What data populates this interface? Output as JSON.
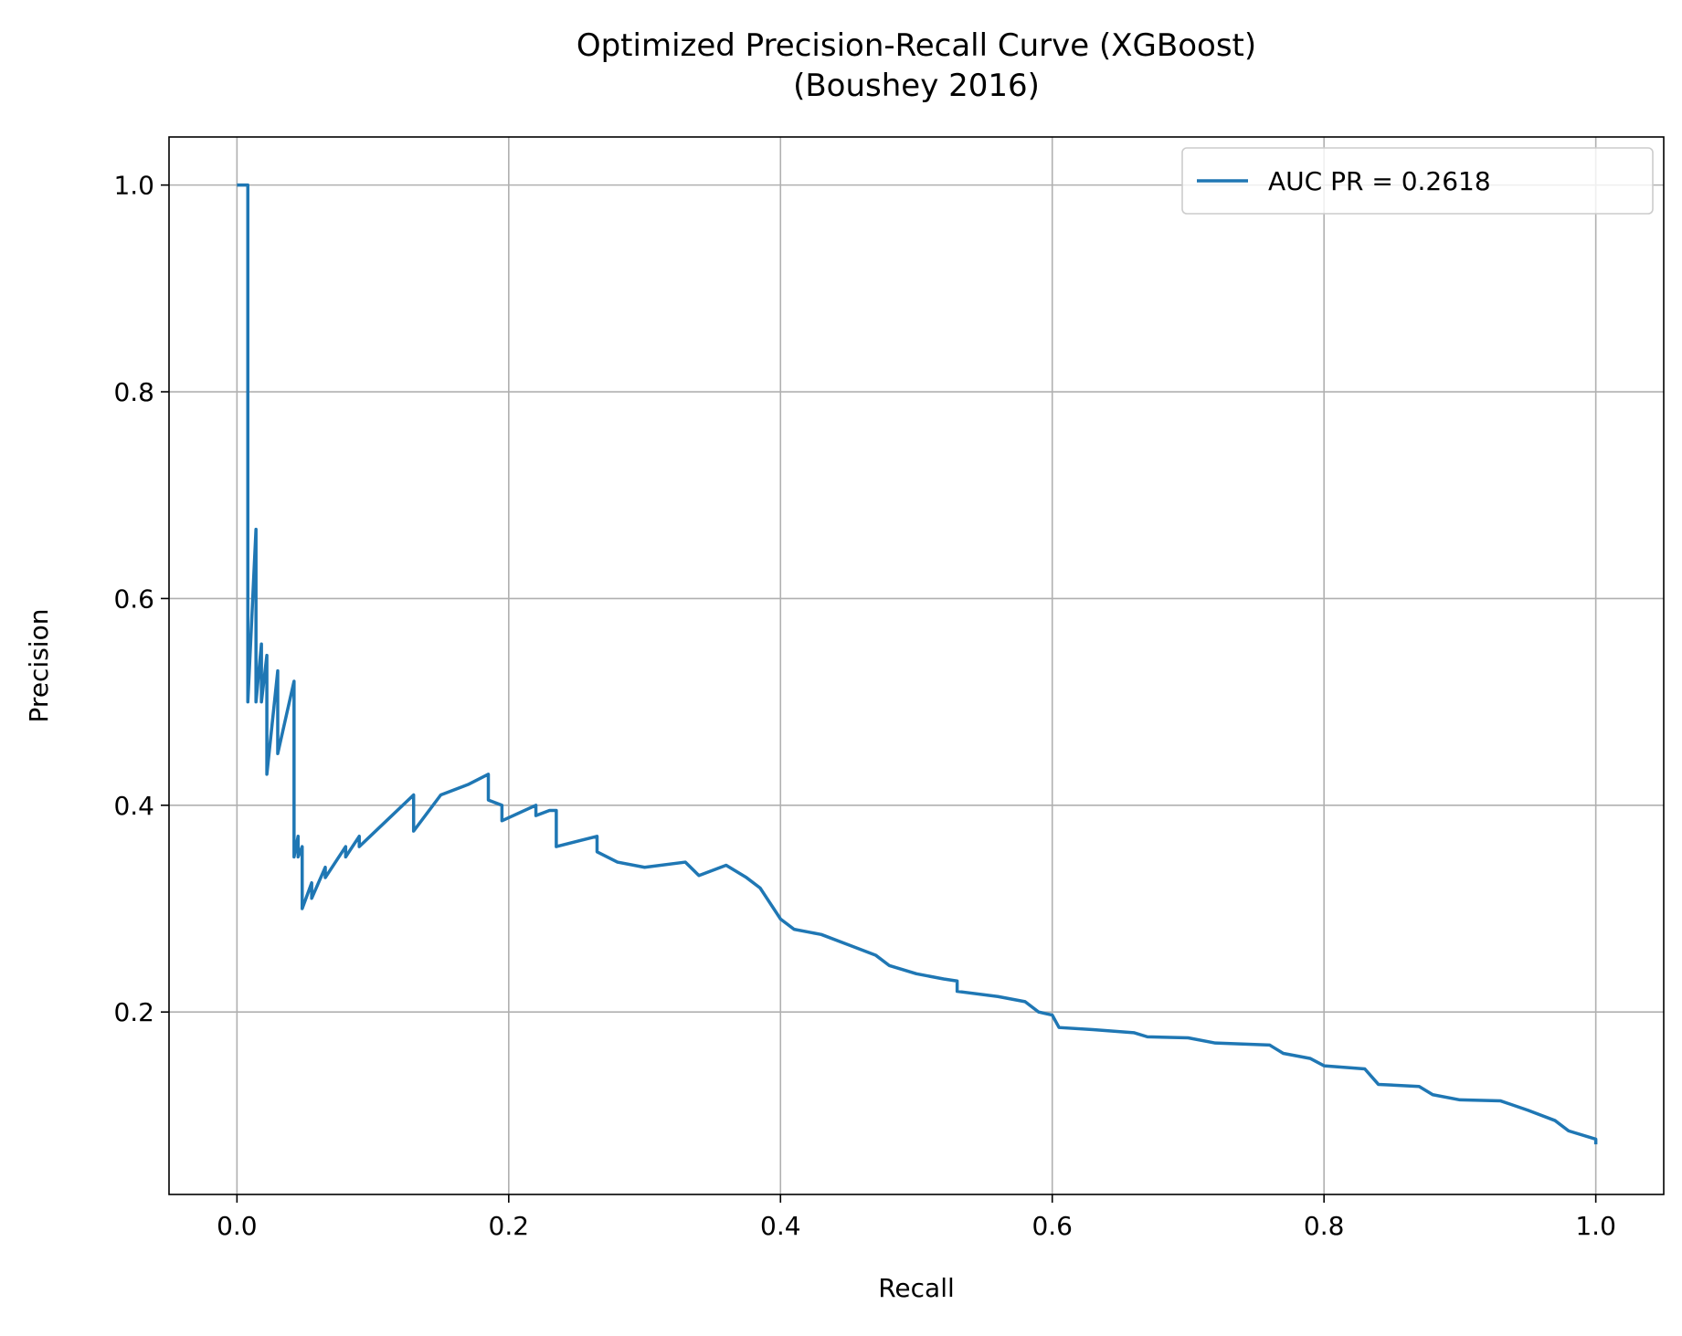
{
  "chart_data": {
    "type": "line",
    "title": "Optimized Precision-Recall Curve (XGBoost)\n(Boushey 2016)",
    "x_label": "Recall",
    "y_label": "Precision",
    "xlim": [
      -0.05,
      1.05
    ],
    "ylim": [
      0.0235,
      1.0465
    ],
    "xticks": [
      {
        "value": 0,
        "label": "0.0"
      },
      0.2,
      0.4,
      0.6,
      0.8,
      {
        "value": 1,
        "label": "1.0"
      }
    ],
    "yticks": [
      0.2,
      0.4,
      0.6,
      0.8,
      {
        "value": 1,
        "label": "1.0"
      }
    ],
    "grid": true,
    "legend": "upper right",
    "series": [
      {
        "name": "AUC PR = 0.2618",
        "color": "#1f77b4",
        "x": [
          0,
          0.008,
          0.008,
          0.014,
          0.014,
          0.018,
          0.018,
          0.022,
          0.022,
          0.03,
          0.03,
          0.042,
          0.042,
          0.045,
          0.045,
          0.048,
          0.048,
          0.055,
          0.055,
          0.065,
          0.065,
          0.08,
          0.08,
          0.09,
          0.09,
          0.11,
          0.13,
          0.13,
          0.15,
          0.17,
          0.185,
          0.185,
          0.195,
          0.195,
          0.22,
          0.22,
          0.23,
          0.235,
          0.235,
          0.265,
          0.265,
          0.28,
          0.3,
          0.33,
          0.34,
          0.36,
          0.375,
          0.385,
          0.39,
          0.395,
          0.4,
          0.41,
          0.43,
          0.45,
          0.47,
          0.48,
          0.5,
          0.52,
          0.53,
          0.53,
          0.56,
          0.58,
          0.59,
          0.6,
          0.605,
          0.63,
          0.66,
          0.67,
          0.7,
          0.72,
          0.76,
          0.77,
          0.79,
          0.8,
          0.83,
          0.84,
          0.87,
          0.88,
          0.9,
          0.93,
          0.95,
          0.97,
          0.98,
          1.0,
          1.0
        ],
        "values": [
          1.0,
          1.0,
          0.5,
          0.667,
          0.5,
          0.556,
          0.5,
          0.545,
          0.43,
          0.53,
          0.45,
          0.52,
          0.35,
          0.37,
          0.35,
          0.36,
          0.3,
          0.325,
          0.31,
          0.34,
          0.33,
          0.36,
          0.35,
          0.37,
          0.36,
          0.385,
          0.41,
          0.375,
          0.41,
          0.42,
          0.43,
          0.405,
          0.4,
          0.385,
          0.4,
          0.39,
          0.395,
          0.395,
          0.36,
          0.37,
          0.355,
          0.345,
          0.34,
          0.345,
          0.332,
          0.342,
          0.33,
          0.32,
          0.31,
          0.3,
          0.29,
          0.28,
          0.275,
          0.265,
          0.255,
          0.245,
          0.237,
          0.232,
          0.23,
          0.22,
          0.215,
          0.21,
          0.2,
          0.197,
          0.185,
          0.183,
          0.18,
          0.176,
          0.175,
          0.17,
          0.168,
          0.16,
          0.155,
          0.148,
          0.145,
          0.13,
          0.128,
          0.12,
          0.115,
          0.114,
          0.105,
          0.095,
          0.085,
          0.077,
          0.072
        ]
      }
    ]
  }
}
